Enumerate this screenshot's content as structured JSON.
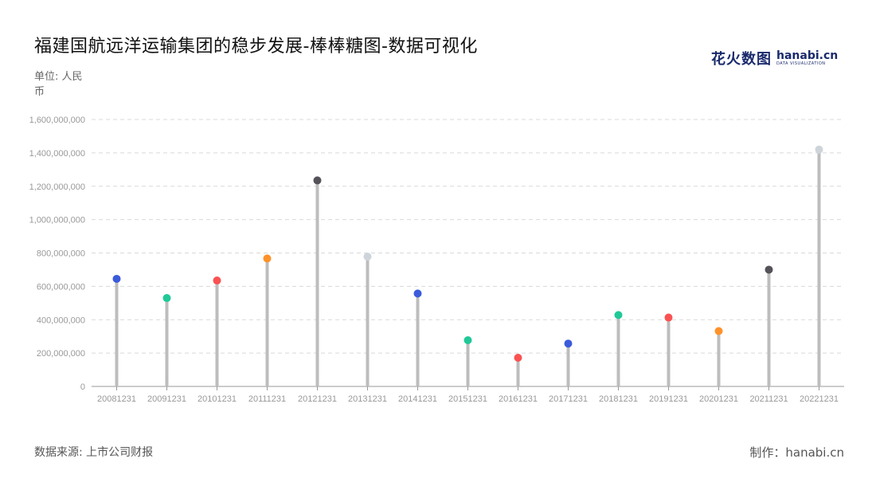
{
  "header": {
    "title": "福建国航远洋运输集团的稳步发展-棒棒糖图-数据可视化",
    "unit_label": "单位: 人民币"
  },
  "logo": {
    "cn_text": "花火数图",
    "en_text": "hanabi.cn",
    "sub_text": "DATA VISUALIZATION"
  },
  "footer": {
    "source": "数据来源: 上市公司财报",
    "credit": "制作：hanabi.cn"
  },
  "chart_data": {
    "type": "lollipop",
    "title": "福建国航远洋运输集团的稳步发展-棒棒糖图-数据可视化",
    "ylabel": "单位: 人民币",
    "ylim": [
      0,
      1600000000
    ],
    "yticks": [
      0,
      200000000,
      400000000,
      600000000,
      800000000,
      1000000000,
      1200000000,
      1400000000,
      1600000000
    ],
    "ytick_labels": [
      "0",
      "200,000,000",
      "400,000,000",
      "600,000,000",
      "800,000,000",
      "1,000,000,000",
      "1,200,000,000",
      "1,400,000,000",
      "1,600,000,000"
    ],
    "grid": true,
    "categories": [
      "20081231",
      "20091231",
      "20101231",
      "20111231",
      "20121231",
      "20131231",
      "20141231",
      "20151231",
      "20161231",
      "20171231",
      "20181231",
      "20191231",
      "20201231",
      "20211231",
      "20221231"
    ],
    "values": [
      645000000,
      530000000,
      635000000,
      767000000,
      1235000000,
      778000000,
      557000000,
      277000000,
      172000000,
      257000000,
      428000000,
      413000000,
      332000000,
      700000000,
      1420000000
    ],
    "colors": [
      "#3b5bdb",
      "#20c997",
      "#fa5252",
      "#ff922b",
      "#555259",
      "#ced4da",
      "#3b5bdb",
      "#20c997",
      "#fa5252",
      "#3b5bdb",
      "#20c997",
      "#fa5252",
      "#ff922b",
      "#555259",
      "#ced4da"
    ],
    "stem_color": "#bdbdbd"
  }
}
